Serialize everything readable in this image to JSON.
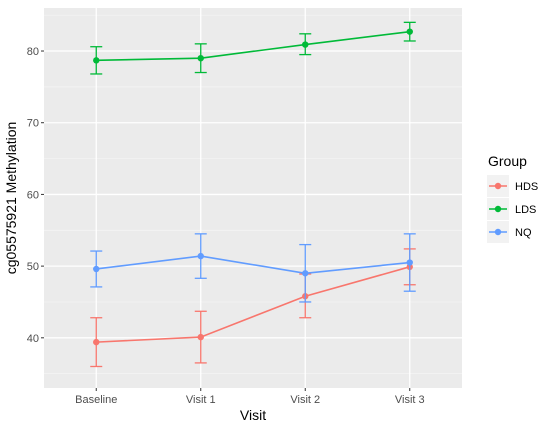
{
  "chart_data": {
    "type": "line",
    "xlabel": "Visit",
    "ylabel": "cg05575921 Methylation",
    "categories": [
      "Baseline",
      "Visit 1",
      "Visit 2",
      "Visit 3"
    ],
    "ylim": [
      33,
      86
    ],
    "yticks": [
      40,
      50,
      60,
      70,
      80
    ],
    "grid": true,
    "legend": {
      "title": "Group",
      "position": "right"
    },
    "series": [
      {
        "name": "HDS",
        "color": "#F8766D",
        "values": [
          39.4,
          40.1,
          45.8,
          49.9
        ],
        "lower": [
          36.0,
          36.5,
          42.8,
          47.4
        ],
        "upper": [
          42.8,
          43.7,
          48.9,
          52.4
        ]
      },
      {
        "name": "LDS",
        "color": "#00BA38",
        "values": [
          78.7,
          79.0,
          80.9,
          82.7
        ],
        "lower": [
          76.8,
          77.0,
          79.5,
          81.4
        ],
        "upper": [
          80.6,
          81.0,
          82.4,
          84.0
        ]
      },
      {
        "name": "NQ",
        "color": "#619CFF",
        "values": [
          49.6,
          51.4,
          49.0,
          50.5
        ],
        "lower": [
          47.1,
          48.3,
          45.0,
          46.5
        ],
        "upper": [
          52.1,
          54.5,
          53.0,
          54.5
        ]
      }
    ]
  }
}
